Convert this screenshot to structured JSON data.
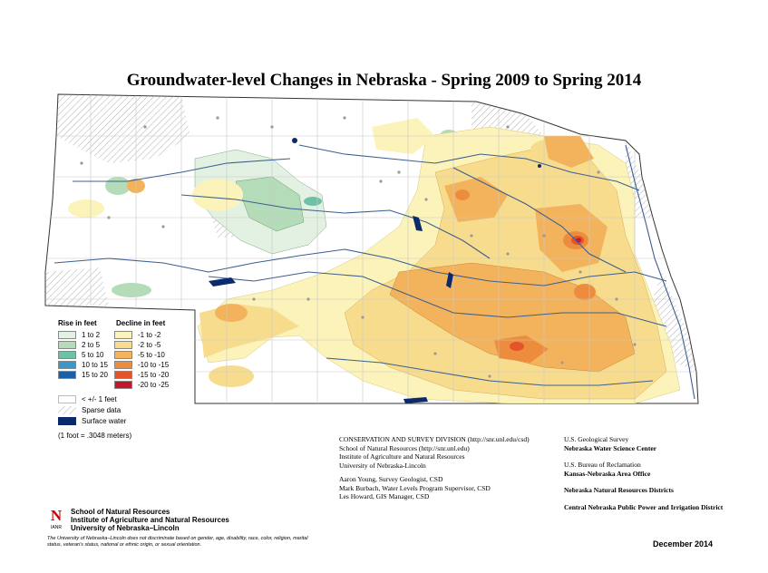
{
  "title": "Groundwater-level Changes in Nebraska - Spring 2009 to Spring 2014",
  "legend": {
    "rise_heading": "Rise in feet",
    "decline_heading": "Decline in feet",
    "rise": [
      {
        "label": "1 to 2",
        "color": "#e3f1e3"
      },
      {
        "label": "2 to 5",
        "color": "#b5dcb8"
      },
      {
        "label": "5 to 10",
        "color": "#6fc1a6"
      },
      {
        "label": "10 to 15",
        "color": "#3a97c9"
      },
      {
        "label": "15 to 20",
        "color": "#1b5fa8"
      }
    ],
    "decline": [
      {
        "label": "-1 to -2",
        "color": "#fbf3b9"
      },
      {
        "label": "-2 to -5",
        "color": "#f8dc8e"
      },
      {
        "label": "-5 to -10",
        "color": "#f3b35c"
      },
      {
        "label": "-10 to -15",
        "color": "#ee8c3e"
      },
      {
        "label": "-15 to -20",
        "color": "#e4532a"
      },
      {
        "label": "-20 to -25",
        "color": "#c2182b"
      }
    ],
    "other": [
      {
        "label": "< +/- 1 feet",
        "kind": "empty"
      },
      {
        "label": "Sparse data",
        "kind": "hatch"
      },
      {
        "label": "Surface water",
        "kind": "water",
        "color": "#0a2a6b"
      }
    ],
    "conversion": "(1 foot = .3048 meters)"
  },
  "credits_left": [
    "CONSERVATION AND SURVEY DIVISION (http://snr.unl.edu/csd)",
    "School of Natural Resources (http://snr.unl.edu)",
    "Institute of Agriculture and Natural Resources",
    "University of Nebraska-Lincoln"
  ],
  "credits_people": [
    "Aaron Young, Survey Geologist, CSD",
    "Mark Burbach, Water Levels Program Supervisor, CSD",
    "Les Howard, GIS Manager, CSD"
  ],
  "credits_right": [
    {
      "line1": "U.S. Geological Survey",
      "line2": "Nebraska Water Science Center"
    },
    {
      "line1": "U.S. Bureau of Reclamation",
      "line2": "Kansas-Nebraska Area Office"
    },
    {
      "line1": "Nebraska Natural Resources Districts",
      "line2": ""
    },
    {
      "line1": "Central Nebraska Public Power and Irrigation District",
      "line2": ""
    }
  ],
  "logo": {
    "mark": "N",
    "sub": "IANR",
    "lines": [
      "School of Natural Resources",
      "Institute of Agriculture and Natural Resources",
      "University of Nebraska–Lincoln"
    ]
  },
  "disclaimer": "The University of Nebraska–Lincoln does not discriminate based on gender, age, disability, race, color, religion, marital status, veteran's status, national or ethnic origin, or sexual orientation.",
  "date": "December 2014"
}
